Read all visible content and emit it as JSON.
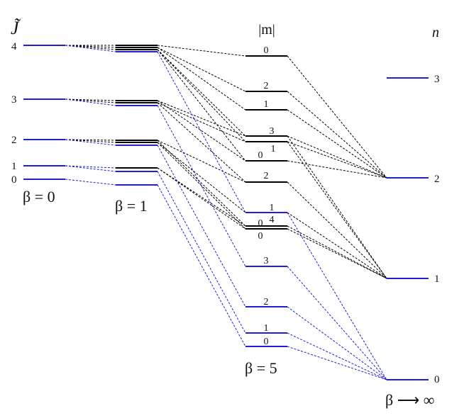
{
  "axis_labels": {
    "j_tilde": "J̃",
    "m_abs": "|m|",
    "n": "n"
  },
  "beta_labels": {
    "beta0": "β = 0",
    "beta1": "β = 1",
    "beta5": "β = 5",
    "betainf": "β ⟶ ∞"
  },
  "j_labels": [
    "4",
    "3",
    "2",
    "1",
    "0"
  ],
  "n_labels": [
    "3",
    "2",
    "1",
    "0"
  ],
  "m_labels": [
    "0",
    "2",
    "1",
    "3",
    "1",
    "0",
    "2",
    "1",
    "4",
    "0",
    "0",
    "3",
    "2",
    "1",
    "0"
  ],
  "colors": {
    "blue": "#1f1fd6",
    "black": "#000000"
  }
}
